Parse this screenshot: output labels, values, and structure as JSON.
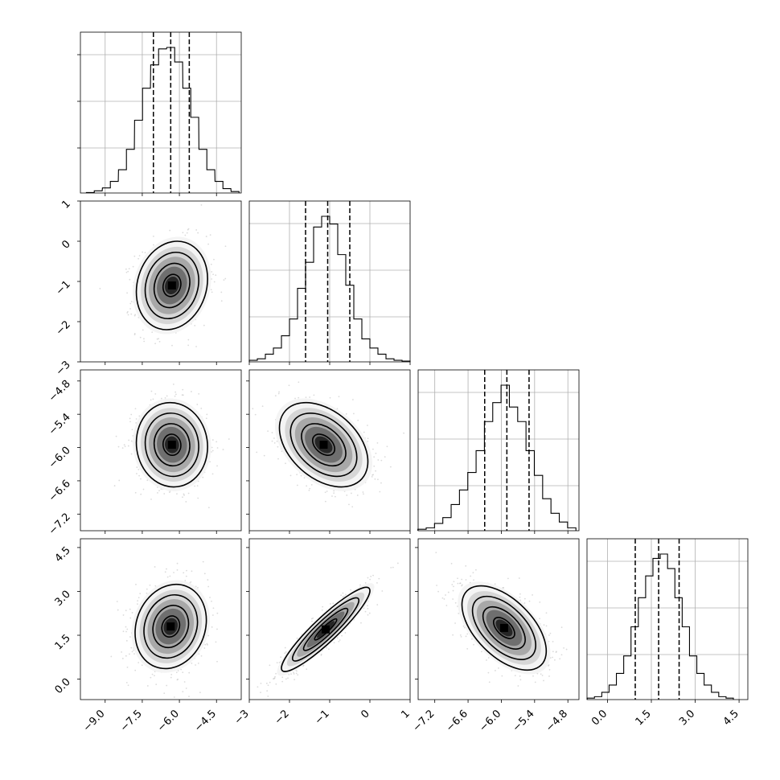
{
  "chart_data": {
    "type": "corner",
    "grid": true,
    "parameters": [
      {
        "range": [
          -10.0,
          -3.5
        ],
        "ticks": [
          -9.0,
          -7.5,
          -6.0,
          -4.5
        ],
        "tick_labels": [
          "−9.0",
          "−7.5",
          "−6.0",
          "−4.5"
        ],
        "quantiles": [
          -7.05,
          -6.35,
          -5.6
        ],
        "hist_centers": [
          -9.6,
          -9.28,
          -8.95,
          -8.63,
          -8.3,
          -7.98,
          -7.65,
          -7.33,
          -7.0,
          -6.68,
          -6.35,
          -6.03,
          -5.7,
          -5.38,
          -5.05,
          -4.73,
          -4.4,
          -4.08,
          -3.75
        ],
        "hist_heights": [
          0.3,
          1.5,
          3.5,
          8,
          16,
          30,
          50,
          72,
          88,
          99,
          100,
          90,
          72,
          52,
          30,
          16,
          8,
          3,
          1
        ]
      },
      {
        "range": [
          -3.0,
          1.0
        ],
        "ticks": [
          -3,
          -2,
          -1,
          0,
          1
        ],
        "tick_labels": [
          "−3",
          "−2",
          "−1",
          "0",
          "1"
        ],
        "quantiles": [
          -1.6,
          -1.05,
          -0.5
        ],
        "hist_centers": [
          -2.9,
          -2.7,
          -2.5,
          -2.3,
          -2.1,
          -1.9,
          -1.7,
          -1.5,
          -1.3,
          -1.1,
          -0.9,
          -0.7,
          -0.5,
          -0.3,
          -0.1,
          0.1,
          0.3,
          0.5,
          0.7,
          0.9
        ],
        "hist_heights": [
          1,
          2,
          5,
          9,
          17,
          28,
          48,
          65,
          88,
          95,
          90,
          70,
          50,
          28,
          15,
          9,
          5,
          2,
          1,
          0.5
        ]
      },
      {
        "range": [
          -7.5,
          -4.6
        ],
        "ticks": [
          -7.2,
          -6.6,
          -6.0,
          -5.4,
          -4.8
        ],
        "tick_labels": [
          "−7.2",
          "−6.6",
          "−6.0",
          "−5.4",
          "−4.8"
        ],
        "quantiles": [
          -6.3,
          -5.9,
          -5.5
        ],
        "hist_centers": [
          -7.43,
          -7.28,
          -7.13,
          -6.98,
          -6.83,
          -6.68,
          -6.53,
          -6.38,
          -6.23,
          -6.08,
          -5.93,
          -5.78,
          -5.63,
          -5.48,
          -5.33,
          -5.18,
          -5.03,
          -4.88,
          -4.73
        ],
        "hist_heights": [
          1,
          2,
          5,
          9,
          18,
          28,
          40,
          55,
          75,
          88,
          100,
          85,
          75,
          55,
          38,
          22,
          12,
          6,
          2
        ]
      },
      {
        "range": [
          -0.7,
          4.8
        ],
        "ticks": [
          0.0,
          1.5,
          3.0,
          4.5
        ],
        "tick_labels": [
          "0.0",
          "1.5",
          "3.0",
          "4.5"
        ],
        "quantiles": [
          0.95,
          1.75,
          2.45
        ],
        "hist_centers": [
          -0.57,
          -0.32,
          -0.07,
          0.18,
          0.43,
          0.68,
          0.93,
          1.18,
          1.43,
          1.68,
          1.93,
          2.18,
          2.43,
          2.68,
          2.93,
          3.18,
          3.43,
          3.68,
          3.93,
          4.18
        ],
        "hist_heights": [
          1,
          2,
          5,
          10,
          18,
          30,
          50,
          70,
          85,
          97,
          100,
          90,
          70,
          50,
          30,
          18,
          10,
          5,
          2,
          1
        ]
      }
    ],
    "panels_2d": [
      {
        "row": 1,
        "col": 0,
        "center": [
          -6.3,
          -1.1
        ],
        "corr": 0.15,
        "sd": [
          0.72,
          0.55
        ]
      },
      {
        "row": 2,
        "col": 0,
        "center": [
          -6.3,
          -5.95
        ],
        "corr": -0.05,
        "sd": [
          0.72,
          0.38
        ]
      },
      {
        "row": 2,
        "col": 1,
        "center": [
          -1.15,
          -5.95
        ],
        "corr": -0.4,
        "sd": [
          0.55,
          0.38
        ]
      },
      {
        "row": 3,
        "col": 0,
        "center": [
          -6.35,
          1.8
        ],
        "corr": 0.15,
        "sd": [
          0.72,
          0.72
        ]
      },
      {
        "row": 3,
        "col": 1,
        "center": [
          -1.1,
          1.7
        ],
        "corr": 0.92,
        "sd": [
          0.55,
          0.72
        ]
      },
      {
        "row": 3,
        "col": 2,
        "center": [
          -5.95,
          1.75
        ],
        "corr": -0.55,
        "sd": [
          0.38,
          0.72
        ]
      }
    ]
  }
}
